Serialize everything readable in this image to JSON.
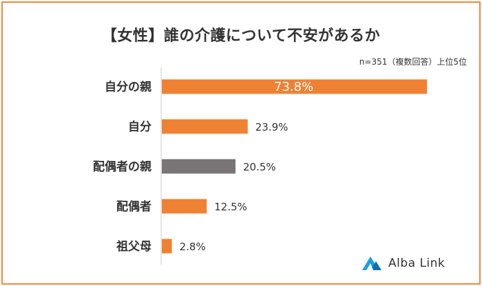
{
  "chart_data": {
    "type": "bar",
    "orientation": "horizontal",
    "title": "【女性】誰の介護について不安があるか",
    "note": "n=351（複数回答）上位5位",
    "categories": [
      "自分の親",
      "自分",
      "配偶者の親",
      "配偶者",
      "祖父母"
    ],
    "values": [
      73.8,
      23.9,
      20.5,
      12.5,
      2.8
    ],
    "value_labels": [
      "73.8%",
      "23.9%",
      "20.5%",
      "12.5%",
      "2.8%"
    ],
    "unit": "%",
    "xlim": [
      0,
      100
    ],
    "colors": [
      "#ef8133",
      "#ef8133",
      "#797475",
      "#ef8133",
      "#ef8133"
    ],
    "grid": false
  },
  "brand": {
    "name": "Alba Link",
    "accent": "#1aa0dc"
  }
}
